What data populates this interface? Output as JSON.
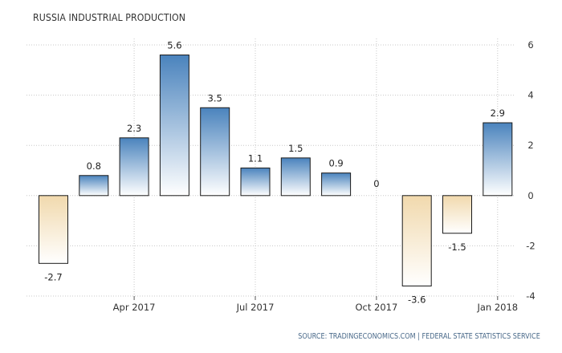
{
  "title": "RUSSIA INDUSTRIAL PRODUCTION",
  "source": "SOURCE: TRADINGECONOMICS.COM | FEDERAL STATE STATISTICS SERVICE",
  "colors": {
    "positive_top": "#4a83bd",
    "positive_bottom": "#ffffff",
    "negative_top": "#f1d9ad",
    "negative_bottom": "#ffffff",
    "bar_stroke": "#1a1a1a",
    "grid": "#c8c8c8"
  },
  "chart_data": {
    "type": "bar",
    "title": "RUSSIA INDUSTRIAL PRODUCTION",
    "categories": [
      "Feb 2017",
      "Mar 2017",
      "Apr 2017",
      "May 2017",
      "Jun 2017",
      "Jul 2017",
      "Aug 2017",
      "Sep 2017",
      "Oct 2017",
      "Nov 2017",
      "Dec 2017",
      "Jan 2018"
    ],
    "values": [
      -2.7,
      0.8,
      2.3,
      5.6,
      3.5,
      1.1,
      1.5,
      0.9,
      0,
      -3.6,
      -1.5,
      2.9
    ],
    "value_labels": [
      "-2.7",
      "0.8",
      "2.3",
      "5.6",
      "3.5",
      "1.1",
      "1.5",
      "0.9",
      "0",
      "-3.6",
      "-1.5",
      "2.9"
    ],
    "x_ticks": [
      {
        "label": "Apr 2017",
        "category": "Apr 2017"
      },
      {
        "label": "Jul 2017",
        "category": "Jul 2017"
      },
      {
        "label": "Oct 2017",
        "category": "Oct 2017"
      },
      {
        "label": "Jan 2018",
        "category": "Jan 2018"
      }
    ],
    "y_ticks": [
      6,
      4,
      2,
      0,
      -2,
      -4
    ],
    "ylim": [
      -4,
      6
    ],
    "y_axis_side": "right",
    "grid": "dotted",
    "legend": "none"
  }
}
